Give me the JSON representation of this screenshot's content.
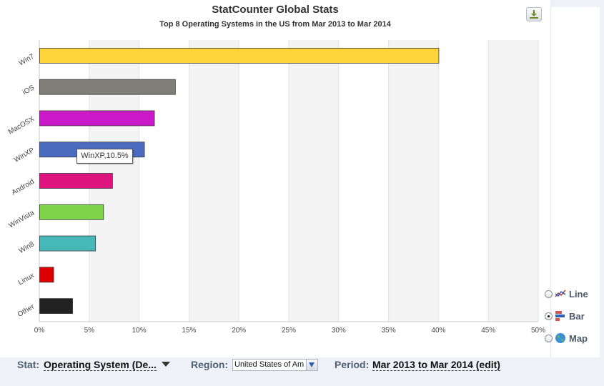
{
  "header": {
    "title": "StatCounter Global Stats",
    "subtitle": "Top 8 Operating Systems in the US from Mar 2013 to Mar 2014"
  },
  "tooltip": {
    "text": "WinXP,10.5%"
  },
  "view_options": [
    {
      "label": "Line",
      "icon": "line-chart-icon",
      "checked": false
    },
    {
      "label": "Bar",
      "icon": "bar-chart-icon",
      "checked": true
    },
    {
      "label": "Map",
      "icon": "globe-icon",
      "checked": false
    }
  ],
  "controls": {
    "stat_label": "Stat:",
    "stat_value": "Operating System (De...",
    "region_label": "Region:",
    "region_value": "United States of Am",
    "period_label": "Period:",
    "period_value": "Mar 2013 to Mar 2014 (edit)"
  },
  "chart_data": {
    "type": "bar",
    "orientation": "horizontal",
    "title": "StatCounter Global Stats",
    "subtitle": "Top 8 Operating Systems in the US from Mar 2013 to Mar 2014",
    "categories": [
      "Win7",
      "iOS",
      "MacOSX",
      "WinXP",
      "Android",
      "WinVista",
      "Win8",
      "Linux",
      "Other"
    ],
    "values": [
      40.0,
      13.6,
      11.5,
      10.5,
      7.3,
      6.4,
      5.6,
      1.4,
      3.3
    ],
    "colors": [
      "#ffd43b",
      "#7f7f78",
      "#cc19c7",
      "#4a6bbf",
      "#e0147f",
      "#7fd44a",
      "#46b8b8",
      "#dd0000",
      "#222222"
    ],
    "xlim": [
      0,
      50
    ],
    "xticks": [
      "0%",
      "5%",
      "10%",
      "15%",
      "20%",
      "25%",
      "30%",
      "35%",
      "40%",
      "45%",
      "50%"
    ],
    "xtick_values": [
      0,
      5,
      10,
      15,
      20,
      25,
      30,
      35,
      40,
      45,
      50
    ],
    "xlabel": "",
    "ylabel": "",
    "grid": "vertical bands"
  }
}
